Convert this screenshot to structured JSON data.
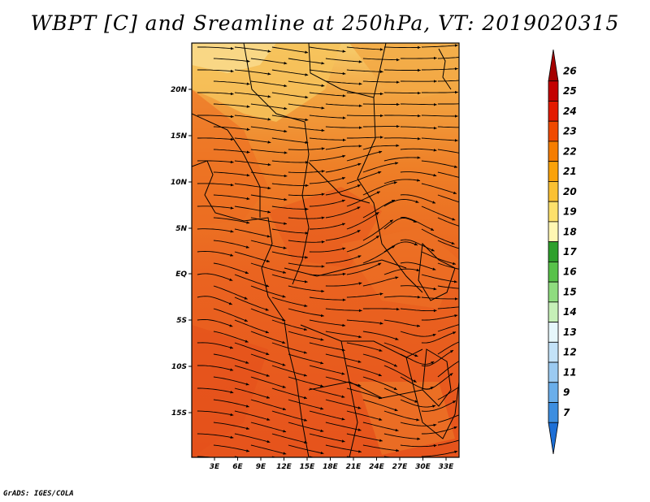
{
  "title": "WBPT [C] and Sreamline at 250hPa, VT: 2019020315",
  "footer": "GrADS: IGES/COLA",
  "map": {
    "lat_labels": [
      "20N",
      "15N",
      "10N",
      "5N",
      "EQ",
      "5S",
      "10S",
      "15S"
    ],
    "lon_labels": [
      "3E",
      "6E",
      "9E",
      "12E",
      "15E",
      "18E",
      "21E",
      "24E",
      "27E",
      "30E",
      "33E"
    ],
    "background_field": "WBPT",
    "field_colors": {
      "upper": "#f4b64a",
      "middle": "#ef7a22",
      "lower": "#e8521c",
      "ridge": "#f7d27a"
    }
  },
  "colorbar": {
    "labels": [
      "26",
      "25",
      "24",
      "23",
      "22",
      "21",
      "20",
      "19",
      "18",
      "17",
      "16",
      "15",
      "14",
      "13",
      "12",
      "11",
      "9",
      "7"
    ],
    "colors": [
      "#a50000",
      "#c30000",
      "#e31a00",
      "#f04a00",
      "#f57d00",
      "#f9a20a",
      "#fbc133",
      "#fde16c",
      "#fff7b3",
      "#2ea02c",
      "#58c24a",
      "#8fdc7f",
      "#c6f0b8",
      "#e6f7fb",
      "#c3e2f8",
      "#9bcaf1",
      "#6aaeea",
      "#3d8ee0",
      "#1d6fd6"
    ]
  }
}
